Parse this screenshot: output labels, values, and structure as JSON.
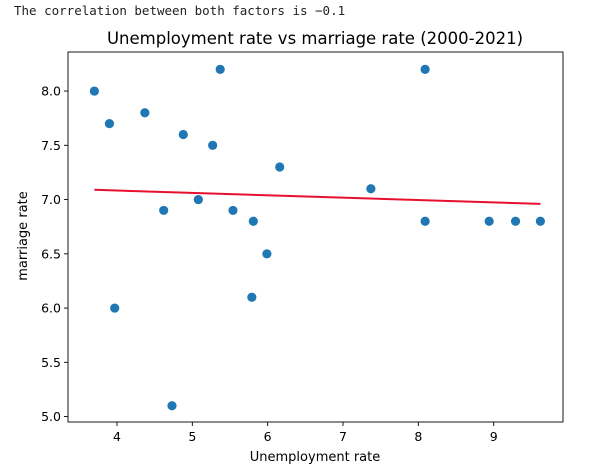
{
  "header": {
    "note": "The correlation between both factors is −0.1"
  },
  "colors": {
    "points": "#1f77b4",
    "trend": "#e8102e",
    "axes": "#000000"
  },
  "chart_data": {
    "type": "scatter",
    "title": "Unemployment rate vs marriage rate (2000-2021)",
    "xlabel": "Unemployment rate",
    "ylabel": "marriage rate",
    "xlim": [
      3.35,
      9.92
    ],
    "ylim": [
      4.95,
      8.36
    ],
    "xticks": [
      4,
      5,
      6,
      7,
      8,
      9
    ],
    "yticks": [
      5.0,
      5.5,
      6.0,
      6.5,
      7.0,
      7.5,
      8.0
    ],
    "ytick_labels": [
      "5.0",
      "5.5",
      "6.0",
      "6.5",
      "7.0",
      "7.5",
      "8.0"
    ],
    "grid": false,
    "series": [
      {
        "points": [
          {
            "x": 3.7,
            "y": 8.0
          },
          {
            "x": 3.9,
            "y": 7.7
          },
          {
            "x": 3.97,
            "y": 6.0
          },
          {
            "x": 4.37,
            "y": 7.8
          },
          {
            "x": 4.62,
            "y": 6.9
          },
          {
            "x": 4.73,
            "y": 5.1
          },
          {
            "x": 4.88,
            "y": 7.6
          },
          {
            "x": 5.08,
            "y": 7.0
          },
          {
            "x": 5.27,
            "y": 7.5
          },
          {
            "x": 5.37,
            "y": 8.2
          },
          {
            "x": 5.54,
            "y": 6.9
          },
          {
            "x": 5.79,
            "y": 6.1
          },
          {
            "x": 5.81,
            "y": 6.8
          },
          {
            "x": 5.99,
            "y": 6.5
          },
          {
            "x": 6.16,
            "y": 7.3
          },
          {
            "x": 7.37,
            "y": 7.1
          },
          {
            "x": 8.09,
            "y": 8.2
          },
          {
            "x": 8.09,
            "y": 6.8
          },
          {
            "x": 8.94,
            "y": 6.8
          },
          {
            "x": 9.29,
            "y": 6.8
          },
          {
            "x": 9.62,
            "y": 6.8
          }
        ]
      }
    ],
    "trendline": {
      "x": [
        3.7,
        9.62
      ],
      "y": [
        7.09,
        6.96
      ]
    }
  }
}
